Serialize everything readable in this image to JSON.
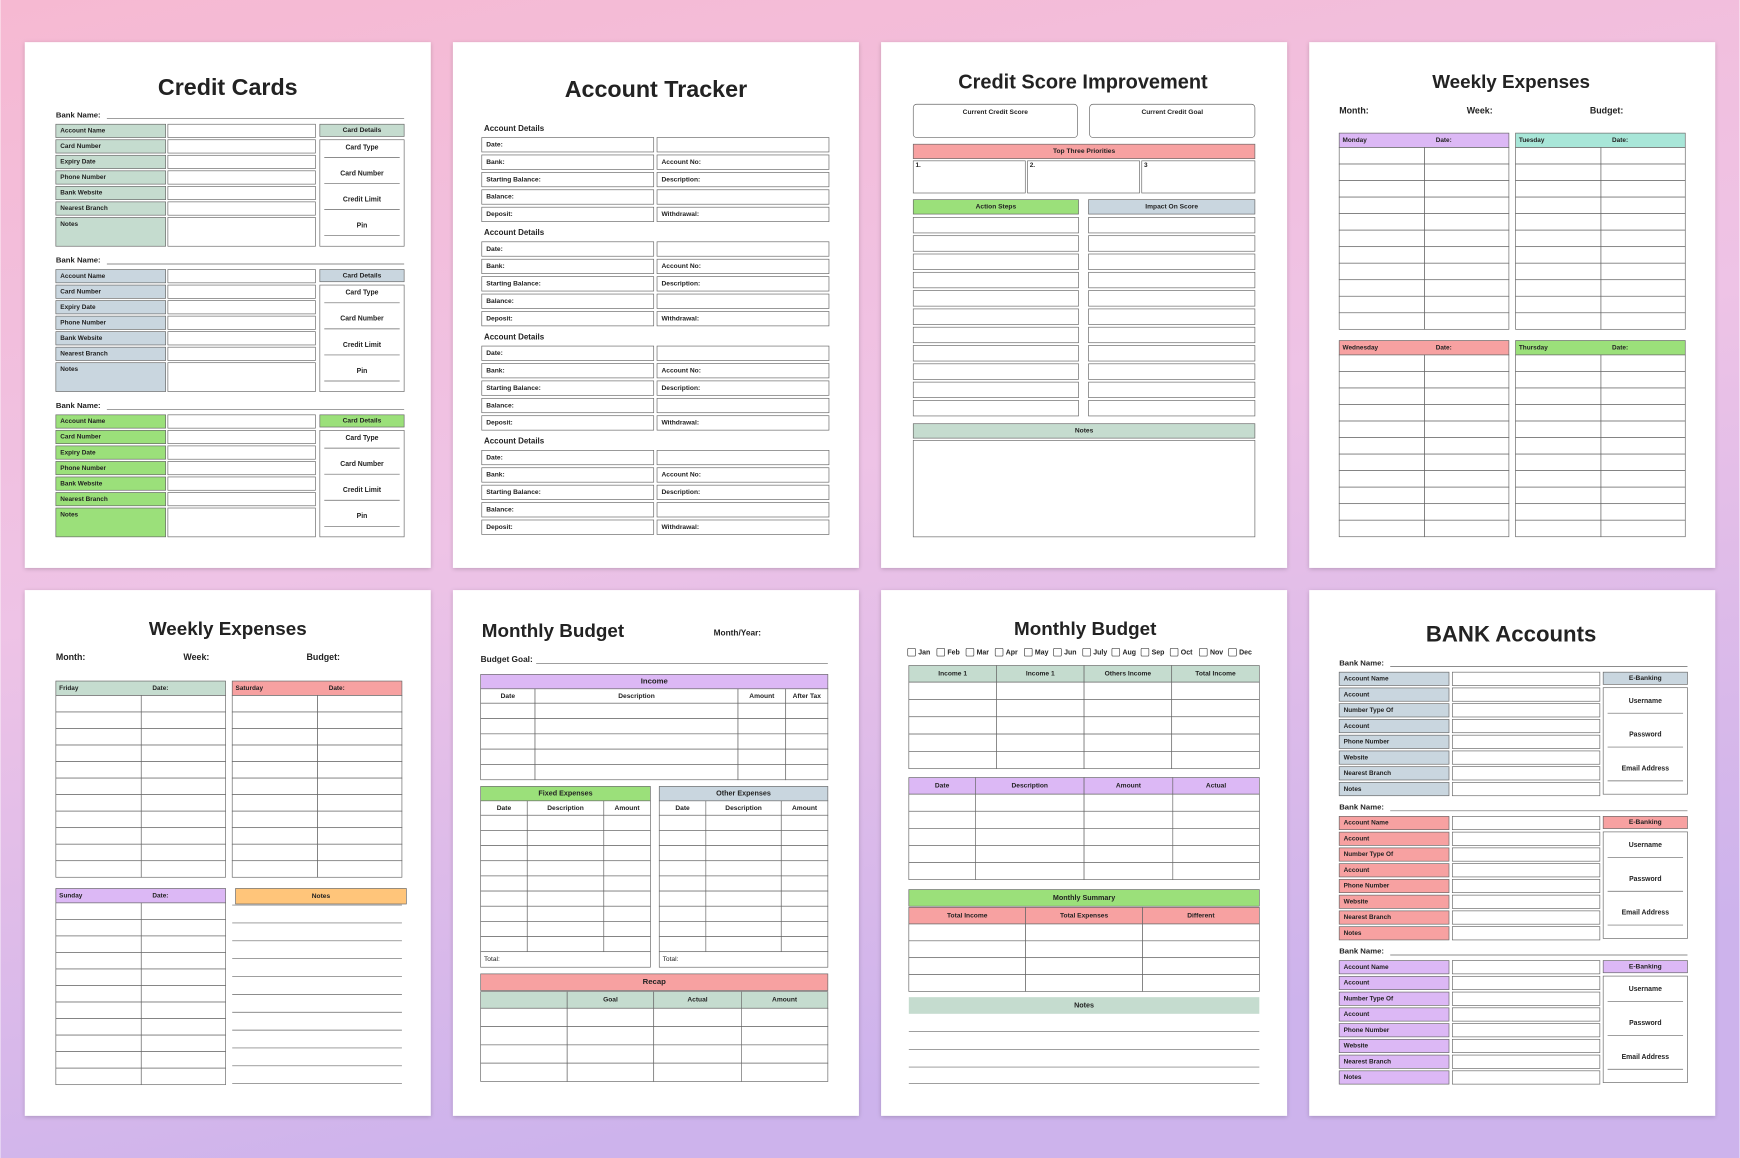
{
  "pages": [
    {
      "title": "Credit Cards",
      "sections": [
        {
          "bank_label": "Bank Name:",
          "color": "#c5dccf",
          "fields": [
            "Account Name",
            "Card Number",
            "Expiry Date",
            "Phone Number",
            "Bank Website",
            "Nearest Branch",
            "Notes"
          ],
          "details_header": "Card Details",
          "details": [
            "Card Type",
            "Card Number",
            "Credit Limit",
            "Pin"
          ]
        },
        {
          "bank_label": "Bank Name:",
          "color": "#c9d6df",
          "fields": [
            "Account Name",
            "Card Number",
            "Expiry Date",
            "Phone Number",
            "Bank Website",
            "Nearest Branch",
            "Notes"
          ],
          "details_header": "Card Details",
          "details": [
            "Card Type",
            "Card Number",
            "Credit Limit",
            "Pin"
          ]
        },
        {
          "bank_label": "Bank Name:",
          "color": "#9be07a",
          "fields": [
            "Account Name",
            "Card Number",
            "Expiry Date",
            "Phone Number",
            "Bank Website",
            "Nearest Branch",
            "Notes"
          ],
          "details_header": "Card Details",
          "details": [
            "Card Type",
            "Card Number",
            "Credit Limit",
            "Pin"
          ]
        }
      ]
    },
    {
      "title": "Account Tracker",
      "blocks": [
        {
          "heading": "Account Details",
          "left": [
            "Date:",
            "Bank:",
            "Starting Balance:",
            "Balance:",
            "Deposit:"
          ],
          "right": [
            null,
            "Account No:",
            "Description:",
            null,
            "Withdrawal:"
          ]
        },
        {
          "heading": "Account Details",
          "left": [
            "Date:",
            "Bank:",
            "Starting Balance:",
            "Balance:",
            "Deposit:"
          ],
          "right": [
            null,
            "Account No:",
            "Description:",
            null,
            "Withdrawal:"
          ]
        },
        {
          "heading": "Account Details",
          "left": [
            "Date:",
            "Bank:",
            "Starting Balance:",
            "Balance:",
            "Deposit:"
          ],
          "right": [
            null,
            "Account No:",
            "Description:",
            null,
            "Withdrawal:"
          ]
        },
        {
          "heading": "Account Details",
          "left": [
            "Date:",
            "Bank:",
            "Starting Balance:",
            "Balance:",
            "Deposit:"
          ],
          "right": [
            null,
            "Account No:",
            "Description:",
            null,
            "Withdrawal:"
          ]
        }
      ]
    },
    {
      "title": "Credit Score Improvement",
      "boxes": [
        "Current Credit Score",
        "Current Credit Goal"
      ],
      "priorities_header": "Top Three Priorities",
      "priorities": [
        "1.",
        "2.",
        "3"
      ],
      "columns": [
        {
          "name": "Action Steps",
          "color": "#9be07a"
        },
        {
          "name": "Impact On Score",
          "color": "#c9d6df"
        }
      ],
      "notes": "Notes"
    },
    {
      "title": "Weekly Expenses",
      "meta": [
        "Month:",
        "Week:",
        "Budget:"
      ],
      "days": [
        {
          "name": "Monday",
          "date_label": "Date:",
          "color": "#dcb8f5"
        },
        {
          "name": "Tuesday",
          "date_label": "Date:",
          "color": "#a8e6d8"
        },
        {
          "name": "Wednesday",
          "date_label": "Date:",
          "color": "#f7a1a1"
        },
        {
          "name": "Thursday",
          "date_label": "Date:",
          "color": "#9be07a"
        }
      ]
    },
    {
      "title": "Weekly Expenses",
      "meta": [
        "Month:",
        "Week:",
        "Budget:"
      ],
      "days": [
        {
          "name": "Friday",
          "date_label": "Date:",
          "color": "#c5dccf"
        },
        {
          "name": "Saturday",
          "date_label": "Date:",
          "color": "#f7a1a1"
        },
        {
          "name": "Sunday",
          "date_label": "Date:",
          "color": "#dcb8f5"
        }
      ],
      "notes": "Notes",
      "notes_color": "#ffc57a"
    },
    {
      "title": "Monthly Budget",
      "period_label": "Month/Year:",
      "goal_label": "Budget Goal:",
      "income": {
        "header": "Income",
        "columns": [
          "Date",
          "Description",
          "Amount",
          "After Tax"
        ]
      },
      "fixed": {
        "header": "Fixed Expenses",
        "columns": [
          "Date",
          "Description",
          "Amount"
        ],
        "total": "Total:"
      },
      "other": {
        "header": "Other Expenses",
        "columns": [
          "Date",
          "Description",
          "Amount"
        ],
        "total": "Total:"
      },
      "recap": {
        "header": "Recap",
        "columns": [
          null,
          "Goal",
          "Actual",
          "Amount"
        ]
      }
    },
    {
      "title": "Monthly Budget",
      "months": [
        "Jan",
        "Feb",
        "Mar",
        "Apr",
        "May",
        "Jun",
        "July",
        "Aug",
        "Sep",
        "Oct",
        "Nov",
        "Dec"
      ],
      "income_columns": [
        "Income 1",
        "Income 1",
        "Others Income",
        "Total Income"
      ],
      "detail_columns": [
        "Date",
        "Description",
        "Amount",
        "Actual"
      ],
      "summary": {
        "header": "Monthly Summary",
        "columns": [
          "Total Income",
          "Total Expenses",
          "Different"
        ]
      },
      "notes": "Notes"
    },
    {
      "title": "BANK Accounts",
      "sections": [
        {
          "bank_label": "Bank Name:",
          "color": "#c9d6df",
          "fields": [
            "Account Name",
            "Account",
            "Number Type Of",
            "Account",
            "Phone Number",
            "Website",
            "Nearest Branch",
            "Notes"
          ],
          "details_header": "E-Banking",
          "details": [
            "Username",
            "Password",
            "Email Address"
          ]
        },
        {
          "bank_label": "Bank Name:",
          "color": "#f7a1a1",
          "fields": [
            "Account Name",
            "Account",
            "Number Type Of",
            "Account",
            "Phone Number",
            "Website",
            "Nearest Branch",
            "Notes"
          ],
          "details_header": "E-Banking",
          "details": [
            "Username",
            "Password",
            "Email Address"
          ]
        },
        {
          "bank_label": "Bank Name:",
          "color": "#dcb8f5",
          "fields": [
            "Account Name",
            "Account",
            "Number Type Of",
            "Account",
            "Phone Number",
            "Website",
            "Nearest Branch",
            "Notes"
          ],
          "details_header": "E-Banking",
          "details": [
            "Username",
            "Password",
            "Email Address"
          ]
        }
      ]
    }
  ]
}
